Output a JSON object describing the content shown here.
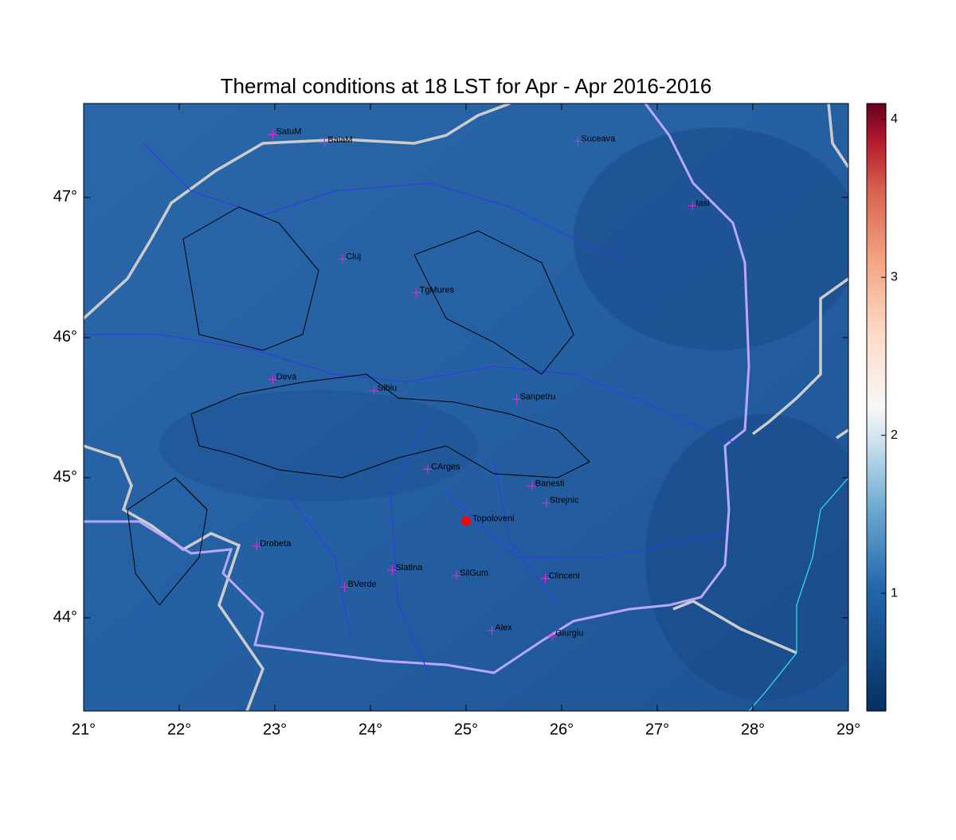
{
  "map": {
    "title": "Thermal conditions at 18 LST for Apr - Apr  2016-2016",
    "xlim": [
      21,
      29
    ],
    "ylim": [
      43.335,
      47.67
    ],
    "xticks": [
      {
        "value": 21,
        "label": "21°"
      },
      {
        "value": 22,
        "label": "22°"
      },
      {
        "value": 23,
        "label": "23°"
      },
      {
        "value": 24,
        "label": "24°"
      },
      {
        "value": 25,
        "label": "25°"
      },
      {
        "value": 26,
        "label": "26°"
      },
      {
        "value": 27,
        "label": "27°"
      },
      {
        "value": 28,
        "label": "28°"
      },
      {
        "value": 29,
        "label": "29°"
      }
    ],
    "yticks": [
      {
        "value": 44,
        "label": "44°"
      },
      {
        "value": 45,
        "label": "45°"
      },
      {
        "value": 46,
        "label": "46°"
      },
      {
        "value": 47,
        "label": "47°"
      }
    ],
    "station_color": "#cc33cc",
    "stations": [
      {
        "name": "SatuM",
        "lon": 22.98,
        "lat": 47.45
      },
      {
        "name": "BaiaM",
        "lon": 23.52,
        "lat": 47.39
      },
      {
        "name": "Suceava",
        "lon": 26.17,
        "lat": 47.4
      },
      {
        "name": "Iasi",
        "lon": 27.37,
        "lat": 46.94
      },
      {
        "name": "Cluj",
        "lon": 23.71,
        "lat": 46.56
      },
      {
        "name": "TgMures",
        "lon": 24.48,
        "lat": 46.32
      },
      {
        "name": "Deva",
        "lon": 22.98,
        "lat": 45.7
      },
      {
        "name": "Sibiu",
        "lon": 24.04,
        "lat": 45.62
      },
      {
        "name": "Sanpetru",
        "lon": 25.53,
        "lat": 45.56
      },
      {
        "name": "CArges",
        "lon": 24.6,
        "lat": 45.06
      },
      {
        "name": "Banesti",
        "lon": 25.69,
        "lat": 44.94
      },
      {
        "name": "Strejnic",
        "lon": 25.84,
        "lat": 44.82
      },
      {
        "name": "Drobeta",
        "lon": 22.81,
        "lat": 44.51
      },
      {
        "name": "Slatina",
        "lon": 24.23,
        "lat": 44.34
      },
      {
        "name": "SilGum",
        "lon": 24.9,
        "lat": 44.3
      },
      {
        "name": "BVerde",
        "lon": 23.73,
        "lat": 44.22
      },
      {
        "name": "Clinceni",
        "lon": 25.83,
        "lat": 44.28
      },
      {
        "name": "Alex",
        "lon": 25.27,
        "lat": 43.91
      },
      {
        "name": "Giurgiu",
        "lon": 25.9,
        "lat": 43.87
      }
    ],
    "site": {
      "name": "Topoloveni",
      "lon": 25.0,
      "lat": 44.69,
      "color": "#ff0000"
    },
    "colorbar": {
      "lim": [
        0.255,
        4.1
      ],
      "ticks": [
        1,
        2,
        3,
        4
      ]
    }
  }
}
